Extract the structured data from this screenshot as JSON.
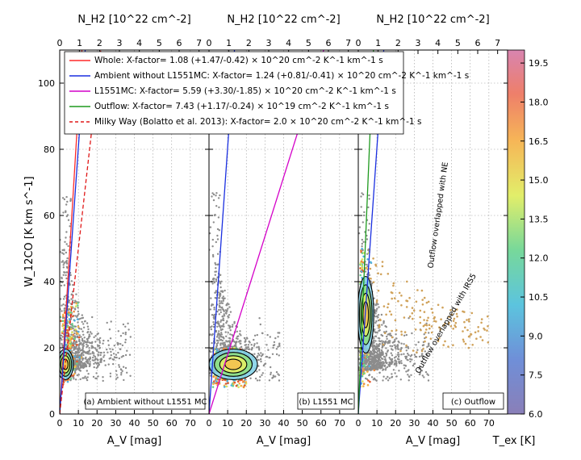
{
  "chart_data": {
    "type": "scatter",
    "colorbar": {
      "label": "T_ex [K]",
      "ticks": [
        "6.0",
        "7.5",
        "9.0",
        "10.5",
        "12.0",
        "13.5",
        "15.0",
        "16.5",
        "18.0",
        "19.5"
      ],
      "range": [
        6.0,
        20.0
      ]
    },
    "y_axis": {
      "label": "W_12CO [K km s^-1]",
      "range": [
        0,
        110
      ],
      "ticks": [
        0,
        20,
        40,
        60,
        80,
        100
      ]
    },
    "bottom_axis": {
      "label": "A_V [mag]",
      "range": [
        0,
        80
      ],
      "ticks": [
        0,
        10,
        20,
        30,
        40,
        50,
        60,
        70
      ]
    },
    "top_axis": {
      "label": "N_H2 [10^22 cm^-2]",
      "range": [
        0,
        7.5
      ],
      "ticks": [
        0,
        1,
        2,
        3,
        4,
        5,
        6,
        7
      ]
    },
    "legend": [
      {
        "label": "Whole: X-factor= 1.08 (+1.47/-0.42) × 10^20 cm^-2 K^-1 km^-1 s",
        "color": "#ff2a2a",
        "dash": false,
        "slope": 9.25
      },
      {
        "label": "Ambient without L1551MC: X-factor= 1.24 (+0.81/-0.41) × 10^20 cm^-2 K^-1 km^-1 s",
        "color": "#1a2fe0",
        "dash": false,
        "slope": 8.06
      },
      {
        "label": "L1551MC: X-factor= 5.59 (+3.30/-1.85) × 10^20 cm^-2 K^-1 km^-1 s",
        "color": "#d400c8",
        "dash": false,
        "slope": 1.79
      },
      {
        "label": "Outflow: X-factor= 7.43 (+1.17/-0.24) × 10^19 cm^-2 K^-1 km^-1 s",
        "color": "#1f9a1f",
        "dash": false,
        "slope": 13.5
      },
      {
        "label": "Milky Way (Bolatto et al. 2013): X-factor= 2.0 × 10^20 cm^-2 K^-1 km^-1 s",
        "color": "#e01818",
        "dash": true,
        "slope": 5.0
      }
    ],
    "panels": [
      {
        "id": "a",
        "label": "(a) Ambient without L1551 MC",
        "fit_lines": [
          "Whole",
          "Ambient without L1551MC",
          "Milky Way"
        ],
        "contour_center": [
          3,
          15
        ],
        "annotations": []
      },
      {
        "id": "b",
        "label": "(b) L1551 MC",
        "fit_lines": [
          "Ambient without L1551MC",
          "L1551MC"
        ],
        "contour_center": [
          13,
          15
        ],
        "annotations": []
      },
      {
        "id": "c",
        "label": "(c) Outflow",
        "fit_lines": [
          "Ambient without L1551MC",
          "Outflow"
        ],
        "contour_center": [
          4,
          30
        ],
        "annotations": [
          "Outflow overlapped with NE",
          "Outflow overlapped with IRS5"
        ]
      }
    ]
  }
}
